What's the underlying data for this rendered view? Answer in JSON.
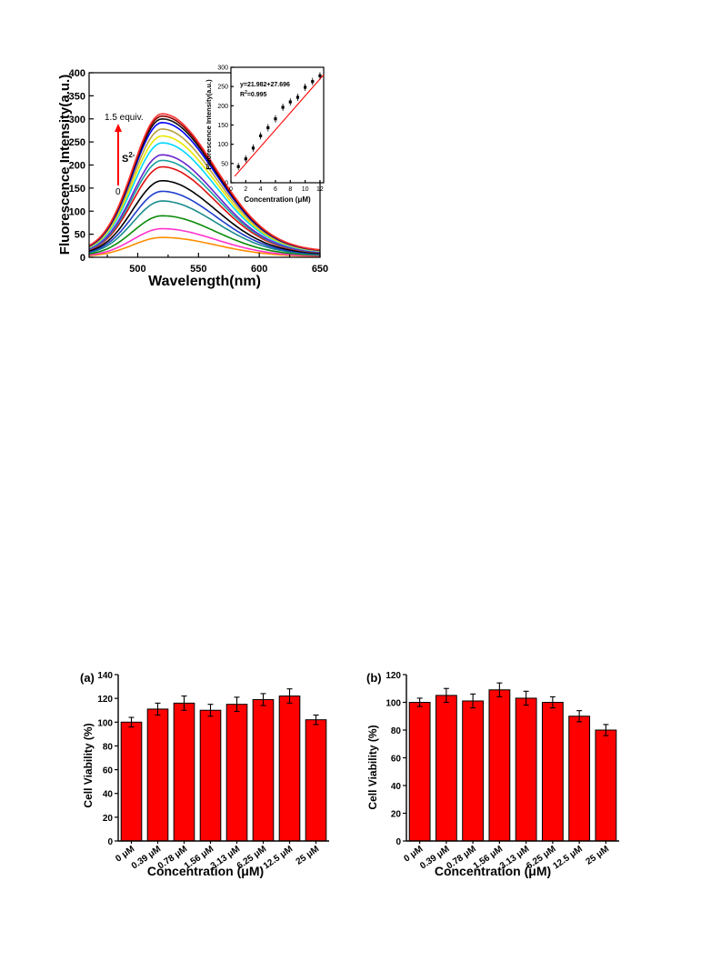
{
  "chart_data": [
    {
      "type": "line",
      "xlabel": "Wavelength(nm)",
      "ylabel": "Fluorescence Intensity(a.u.)",
      "xlim": [
        460,
        650
      ],
      "ylim": [
        0,
        400
      ],
      "xticks": [
        "500",
        "550",
        "600",
        "650"
      ],
      "yticks": [
        "0",
        "50",
        "100",
        "150",
        "200",
        "250",
        "300",
        "350",
        "400"
      ],
      "annotation": {
        "top": "1.5 equiv.",
        "ion": "S",
        "ion_sup": "2-",
        "bottom": "0"
      },
      "peak_x": 520,
      "series": [
        {
          "color": "#ff8c00",
          "values_peak": 43
        },
        {
          "color": "#ff33cc",
          "values_peak": 62
        },
        {
          "color": "#0a8a0a",
          "values_peak": 90
        },
        {
          "color": "#1a8c8c",
          "values_peak": 122
        },
        {
          "color": "#1f3fcc",
          "values_peak": 143
        },
        {
          "color": "#000000",
          "values_peak": 166
        },
        {
          "color": "#e01010",
          "values_peak": 196
        },
        {
          "color": "#1aa0a0",
          "values_peak": 210
        },
        {
          "color": "#6a22cc",
          "values_peak": 222
        },
        {
          "color": "#00d8ff",
          "values_peak": 248
        },
        {
          "color": "#e8e800",
          "values_peak": 263
        },
        {
          "color": "#b8a040",
          "values_peak": 278
        },
        {
          "color": "#0000ff",
          "values_peak": 292
        },
        {
          "color": "#101010",
          "values_peak": 300
        },
        {
          "color": "#8b0000",
          "values_peak": 306
        },
        {
          "color": "#ff3030",
          "values_peak": 311
        }
      ],
      "inset": {
        "type": "scatter",
        "xlabel": "Concentration (μM)",
        "ylabel": "Fluorescence Intensity(a.u.)",
        "xlim": [
          0,
          12.5
        ],
        "ylim": [
          0,
          300
        ],
        "xticks": [
          "0",
          "2",
          "4",
          "6",
          "8",
          "10",
          "12"
        ],
        "yticks": [
          "0",
          "50",
          "100",
          "150",
          "200",
          "250",
          "300"
        ],
        "equation": "y=21.982+27.696",
        "r2_label": "R",
        "r2_sup": "2",
        "r2_value": "=0.995",
        "x": [
          1,
          2,
          3,
          4,
          5,
          6,
          7,
          8,
          9,
          10,
          11,
          12
        ],
        "y": [
          42,
          62,
          90,
          122,
          143,
          166,
          196,
          210,
          222,
          248,
          263,
          278
        ],
        "fit": {
          "slope": 21.982,
          "intercept": 27.696
        }
      }
    },
    {
      "type": "bar",
      "panel": "(a)",
      "xlabel": "Concentration (μM)",
      "ylabel": "Cell Viability (%)",
      "ylim": [
        0,
        140
      ],
      "yticks": [
        "0",
        "20",
        "40",
        "60",
        "80",
        "100",
        "120",
        "140"
      ],
      "categories": [
        "0 μM",
        "0.39 μM",
        "0.78 μM",
        "1.56 μM",
        "3.13 μM",
        "6.25 μM",
        "12.5 μM",
        "25 μM"
      ],
      "values": [
        100,
        111,
        116,
        110,
        115,
        119,
        122,
        102
      ],
      "errors": [
        4,
        5,
        6,
        5,
        6,
        5,
        6,
        4
      ],
      "bar_color": "#ff0000"
    },
    {
      "type": "bar",
      "panel": "(b)",
      "xlabel": "Concentration (μM)",
      "ylabel": "Cell Viability (%)",
      "ylim": [
        0,
        120
      ],
      "yticks": [
        "0",
        "20",
        "40",
        "60",
        "80",
        "100",
        "120"
      ],
      "categories": [
        "0 μM",
        "0.39 μM",
        "0.78 μM",
        "1.56 μM",
        "3.13 μM",
        "6.25 μM",
        "12.5 μM",
        "25 μM"
      ],
      "values": [
        100,
        105,
        101,
        109,
        103,
        100,
        90,
        80
      ],
      "errors": [
        3,
        5,
        5,
        5,
        5,
        4,
        4,
        4
      ],
      "bar_color": "#ff0000"
    }
  ]
}
